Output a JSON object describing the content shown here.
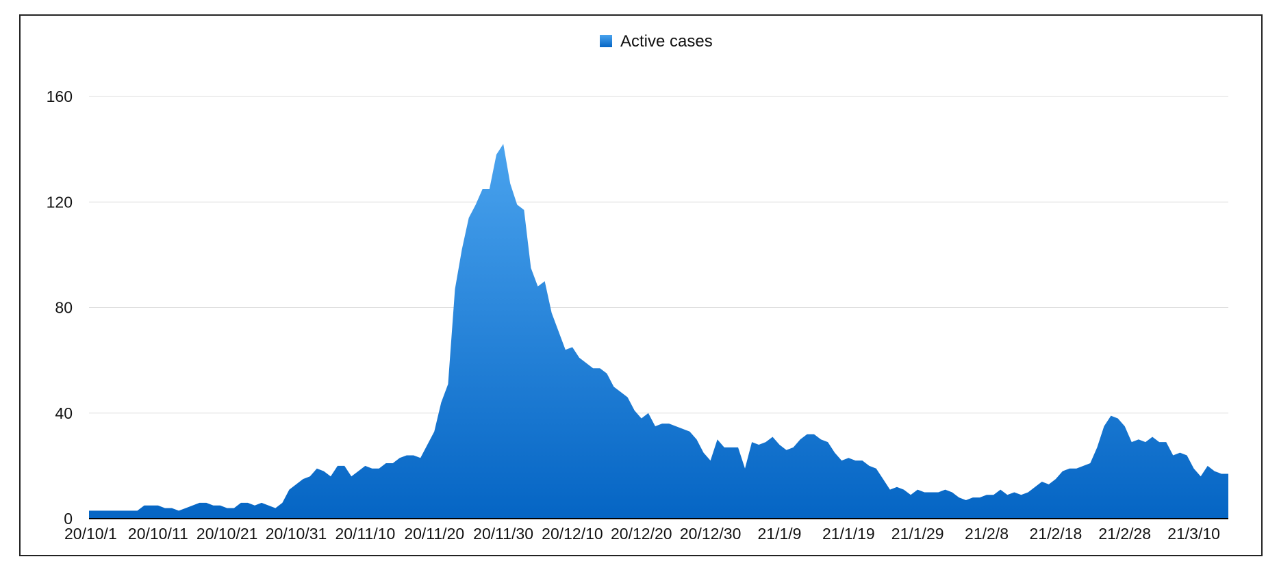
{
  "chart_data": {
    "type": "area",
    "title": "",
    "xlabel": "",
    "ylabel": "",
    "ylim": [
      0,
      160
    ],
    "y_ticks": [
      0,
      40,
      80,
      120,
      160
    ],
    "grid": true,
    "legend_position": "top-center",
    "x_tick_labels": [
      "20/10/1",
      "20/10/11",
      "20/10/21",
      "20/10/31",
      "20/11/10",
      "20/11/20",
      "20/11/30",
      "20/12/10",
      "20/12/20",
      "20/12/30",
      "21/1/9",
      "21/1/19",
      "21/1/29",
      "21/2/8",
      "21/2/18",
      "21/2/28",
      "21/3/10"
    ],
    "x_start": "20/10/1",
    "x_end": "21/3/17",
    "colors": {
      "area_top": "#4aa3ee",
      "area_bottom": "#0565c4",
      "legend_swatch": "#2b83d8",
      "grid": "#dddddd",
      "axis": "#000000"
    },
    "series": [
      {
        "name": "Active cases",
        "values": [
          3,
          3,
          3,
          3,
          3,
          3,
          3,
          3,
          5,
          5,
          5,
          4,
          4,
          3,
          4,
          5,
          6,
          6,
          5,
          5,
          4,
          4,
          6,
          6,
          5,
          6,
          5,
          4,
          6,
          11,
          13,
          15,
          16,
          19,
          18,
          16,
          20,
          20,
          16,
          18,
          20,
          19,
          19,
          21,
          21,
          23,
          24,
          24,
          23,
          28,
          33,
          44,
          51,
          87,
          102,
          114,
          119,
          125,
          125,
          138,
          142,
          127,
          119,
          117,
          95,
          88,
          90,
          78,
          71,
          64,
          65,
          61,
          59,
          57,
          57,
          55,
          50,
          48,
          46,
          41,
          38,
          40,
          35,
          36,
          36,
          35,
          34,
          33,
          30,
          25,
          22,
          30,
          27,
          27,
          27,
          19,
          29,
          28,
          29,
          31,
          28,
          26,
          27,
          30,
          32,
          32,
          30,
          29,
          25,
          22,
          23,
          22,
          22,
          20,
          19,
          15,
          11,
          12,
          11,
          9,
          11,
          10,
          10,
          10,
          11,
          10,
          8,
          7,
          8,
          8,
          9,
          9,
          11,
          9,
          10,
          9,
          10,
          12,
          14,
          13,
          15,
          18,
          19,
          19,
          20,
          21,
          27,
          35,
          39,
          38,
          35,
          29,
          30,
          29,
          31,
          29,
          29,
          24,
          25,
          24,
          19,
          16,
          20,
          18,
          17,
          17
        ]
      }
    ]
  }
}
